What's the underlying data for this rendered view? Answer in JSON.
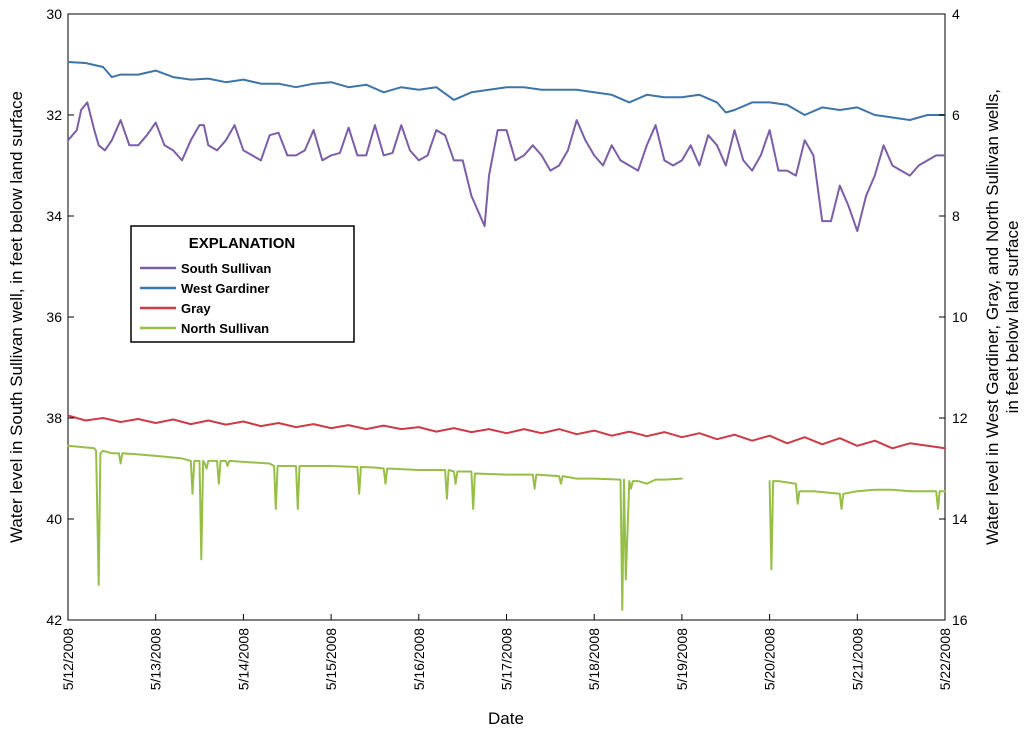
{
  "chart_data": {
    "type": "line",
    "xlabel": "Date",
    "ylabel_left": "Water level in South Sullivan well, in feet below land surface",
    "ylabel_right_line1": "Water level in West Gardiner, Gray, and North Sullivan wells,",
    "ylabel_right_line2": "in feet below land surface",
    "left_axis": {
      "ylim": [
        30,
        42
      ],
      "inverted": true,
      "ticks": [
        "30",
        "32",
        "34",
        "36",
        "38",
        "40",
        "42"
      ]
    },
    "right_axis": {
      "ylim": [
        4,
        16
      ],
      "inverted": true,
      "ticks": [
        "4",
        "6",
        "8",
        "10",
        "12",
        "14",
        "16"
      ]
    },
    "x_ticks": [
      "5/12/2008",
      "5/13/2008",
      "5/14/2008",
      "5/15/2008",
      "5/16/2008",
      "5/17/2008",
      "5/18/2008",
      "5/19/2008",
      "5/20/2008",
      "5/21/2008",
      "5/22/2008"
    ],
    "xlim_days": [
      0,
      10
    ],
    "grid": false,
    "legend": {
      "title": "EXPLANATION",
      "placement": "left"
    },
    "series": [
      {
        "name": "South Sullivan",
        "axis": "left",
        "color": "#7b5ea7",
        "x": [
          0,
          0.1,
          0.15,
          0.22,
          0.3,
          0.35,
          0.42,
          0.5,
          0.6,
          0.7,
          0.8,
          0.9,
          1.0,
          1.1,
          1.2,
          1.3,
          1.4,
          1.5,
          1.55,
          1.6,
          1.7,
          1.8,
          1.9,
          2.0,
          2.1,
          2.2,
          2.3,
          2.4,
          2.5,
          2.6,
          2.7,
          2.8,
          2.9,
          3.0,
          3.1,
          3.2,
          3.3,
          3.4,
          3.5,
          3.6,
          3.7,
          3.8,
          3.9,
          4.0,
          4.1,
          4.2,
          4.3,
          4.4,
          4.5,
          4.6,
          4.7,
          4.75,
          4.8,
          4.9,
          5.0,
          5.1,
          5.2,
          5.3,
          5.4,
          5.5,
          5.6,
          5.7,
          5.8,
          5.9,
          6.0,
          6.1,
          6.2,
          6.3,
          6.4,
          6.5,
          6.6,
          6.7,
          6.8,
          6.9,
          7.0,
          7.1,
          7.2,
          7.3,
          7.4,
          7.5,
          7.6,
          7.7,
          7.8,
          7.9,
          8.0,
          8.1,
          8.2,
          8.3,
          8.4,
          8.5,
          8.6,
          8.7,
          8.8,
          8.9,
          9.0,
          9.1,
          9.2,
          9.3,
          9.4,
          9.5,
          9.6,
          9.7,
          9.8,
          9.9,
          10.0
        ],
        "y": [
          32.5,
          32.3,
          31.9,
          31.75,
          32.3,
          32.6,
          32.7,
          32.5,
          32.1,
          32.6,
          32.6,
          32.4,
          32.15,
          32.6,
          32.7,
          32.9,
          32.5,
          32.2,
          32.2,
          32.6,
          32.7,
          32.5,
          32.2,
          32.7,
          32.8,
          32.9,
          32.4,
          32.35,
          32.8,
          32.8,
          32.7,
          32.3,
          32.9,
          32.8,
          32.75,
          32.25,
          32.8,
          32.8,
          32.2,
          32.8,
          32.75,
          32.2,
          32.7,
          32.9,
          32.8,
          32.3,
          32.4,
          32.9,
          32.9,
          33.6,
          34.0,
          34.2,
          33.2,
          32.3,
          32.3,
          32.9,
          32.8,
          32.6,
          32.8,
          33.1,
          33.0,
          32.7,
          32.1,
          32.5,
          32.8,
          33.0,
          32.6,
          32.9,
          33.0,
          33.1,
          32.6,
          32.2,
          32.9,
          33.0,
          32.9,
          32.6,
          33.0,
          32.4,
          32.6,
          33.0,
          32.3,
          32.9,
          33.1,
          32.8,
          32.3,
          33.1,
          33.1,
          33.2,
          32.5,
          32.8,
          34.1,
          34.1,
          33.4,
          33.8,
          34.3,
          33.6,
          33.2,
          32.6,
          33.0,
          33.1,
          33.2,
          33.0,
          32.9,
          32.8,
          32.8
        ]
      },
      {
        "name": "West Gardiner",
        "axis": "right",
        "color": "#3f74a8",
        "x": [
          0,
          0.2,
          0.4,
          0.5,
          0.6,
          0.8,
          1.0,
          1.2,
          1.4,
          1.6,
          1.8,
          2.0,
          2.2,
          2.4,
          2.6,
          2.8,
          3.0,
          3.2,
          3.4,
          3.6,
          3.8,
          4.0,
          4.2,
          4.4,
          4.6,
          4.8,
          5.0,
          5.2,
          5.4,
          5.6,
          5.8,
          6.0,
          6.2,
          6.4,
          6.6,
          6.8,
          7.0,
          7.2,
          7.4,
          7.5,
          7.6,
          7.8,
          8.0,
          8.2,
          8.4,
          8.6,
          8.8,
          9.0,
          9.2,
          9.4,
          9.6,
          9.8,
          10.0
        ],
        "y": [
          4.95,
          4.97,
          5.05,
          5.25,
          5.2,
          5.2,
          5.12,
          5.25,
          5.3,
          5.28,
          5.35,
          5.3,
          5.38,
          5.38,
          5.45,
          5.38,
          5.35,
          5.45,
          5.4,
          5.55,
          5.45,
          5.5,
          5.45,
          5.7,
          5.55,
          5.5,
          5.45,
          5.45,
          5.5,
          5.5,
          5.5,
          5.55,
          5.6,
          5.75,
          5.6,
          5.65,
          5.65,
          5.6,
          5.75,
          5.95,
          5.9,
          5.75,
          5.75,
          5.8,
          6.0,
          5.85,
          5.9,
          5.85,
          6.0,
          6.05,
          6.1,
          6.0,
          6.0
        ]
      },
      {
        "name": "Gray",
        "axis": "right",
        "color": "#cc3b47",
        "x": [
          0,
          0.2,
          0.4,
          0.6,
          0.8,
          1.0,
          1.2,
          1.4,
          1.6,
          1.8,
          2.0,
          2.2,
          2.4,
          2.6,
          2.8,
          3.0,
          3.2,
          3.4,
          3.6,
          3.8,
          4.0,
          4.2,
          4.4,
          4.6,
          4.8,
          5.0,
          5.2,
          5.4,
          5.6,
          5.8,
          6.0,
          6.2,
          6.4,
          6.6,
          6.8,
          7.0,
          7.2,
          7.4,
          7.6,
          7.8,
          8.0,
          8.2,
          8.4,
          8.6,
          8.8,
          9.0,
          9.2,
          9.4,
          9.6,
          9.8,
          10.0
        ],
        "y": [
          11.95,
          12.05,
          12.0,
          12.08,
          12.02,
          12.1,
          12.03,
          12.12,
          12.05,
          12.13,
          12.07,
          12.16,
          12.1,
          12.18,
          12.12,
          12.2,
          12.14,
          12.22,
          12.15,
          12.22,
          12.18,
          12.27,
          12.2,
          12.28,
          12.22,
          12.3,
          12.22,
          12.3,
          12.22,
          12.32,
          12.25,
          12.35,
          12.27,
          12.36,
          12.28,
          12.38,
          12.3,
          12.42,
          12.33,
          12.45,
          12.35,
          12.5,
          12.38,
          12.52,
          12.4,
          12.55,
          12.45,
          12.6,
          12.5,
          12.55,
          12.6
        ]
      },
      {
        "name": "North Sullivan",
        "axis": "right",
        "color": "#97bf47",
        "x": [
          0,
          0.3,
          0.32,
          0.35,
          0.37,
          0.4,
          0.5,
          0.58,
          0.6,
          0.62,
          0.8,
          1.0,
          1.3,
          1.4,
          1.42,
          1.44,
          1.5,
          1.52,
          1.54,
          1.56,
          1.58,
          1.6,
          1.7,
          1.72,
          1.74,
          1.8,
          1.82,
          1.84,
          2.0,
          2.3,
          2.35,
          2.37,
          2.39,
          2.5,
          2.6,
          2.62,
          2.64,
          3.0,
          3.3,
          3.32,
          3.34,
          3.5,
          3.6,
          3.62,
          3.64,
          4.0,
          4.3,
          4.32,
          4.34,
          4.4,
          4.42,
          4.44,
          4.6,
          4.62,
          4.64,
          5.0,
          5.3,
          5.32,
          5.34,
          5.6,
          5.62,
          5.64,
          5.8,
          6.0,
          6.3,
          6.32,
          6.34,
          6.36,
          6.4,
          6.42,
          6.44,
          6.5,
          6.6,
          6.7,
          6.8,
          7.0,
          7.0,
          8.0,
          8.02,
          8.04,
          8.1,
          8.3,
          8.32,
          8.34,
          8.5,
          8.8,
          8.82,
          8.84,
          9.0,
          9.2,
          9.4,
          9.6,
          9.8,
          9.9,
          9.92,
          9.94,
          10.0
        ],
        "y": [
          12.55,
          12.6,
          12.65,
          15.3,
          12.7,
          12.65,
          12.7,
          12.7,
          12.9,
          12.7,
          12.72,
          12.75,
          12.8,
          12.85,
          13.5,
          12.85,
          12.85,
          14.8,
          12.85,
          12.9,
          13.0,
          12.85,
          12.85,
          13.3,
          12.85,
          12.85,
          12.95,
          12.85,
          12.87,
          12.9,
          12.95,
          13.8,
          12.95,
          12.95,
          12.95,
          13.8,
          12.95,
          12.95,
          12.97,
          13.5,
          12.97,
          12.98,
          13.0,
          13.3,
          13.0,
          13.03,
          13.03,
          13.6,
          13.03,
          13.06,
          13.3,
          13.06,
          13.06,
          13.8,
          13.1,
          13.12,
          13.12,
          13.4,
          13.12,
          13.15,
          13.3,
          13.15,
          13.2,
          13.2,
          13.22,
          15.8,
          13.22,
          15.2,
          13.25,
          13.4,
          13.25,
          13.25,
          13.3,
          13.22,
          13.22,
          13.2,
          null,
          13.25,
          15.0,
          13.25,
          13.25,
          13.3,
          13.7,
          13.45,
          13.45,
          13.5,
          13.8,
          13.5,
          13.45,
          13.42,
          13.42,
          13.45,
          13.45,
          13.45,
          13.8,
          13.45,
          13.45
        ]
      }
    ]
  }
}
